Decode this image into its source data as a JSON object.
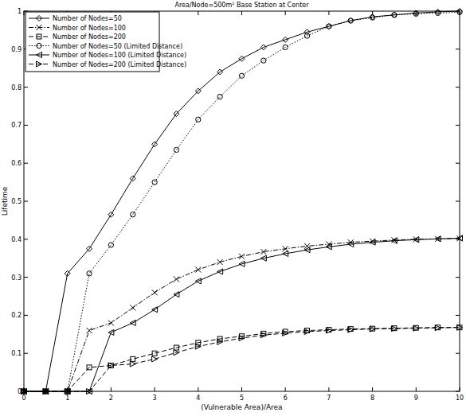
{
  "chart_data": {
    "type": "line",
    "title": "Area/Node=500m² Base Station at Center",
    "x_label": "(Vulnerable Area)/Area",
    "y_label": "Lifetime",
    "x": [
      0,
      0.5,
      1,
      1.5,
      2,
      2.5,
      3,
      3.5,
      4,
      4.5,
      5,
      5.5,
      6,
      6.5,
      7,
      7.5,
      8,
      8.5,
      9,
      9.5,
      10
    ],
    "xlim": [
      0,
      10
    ],
    "xticks": [
      0,
      1,
      2,
      3,
      4,
      5,
      6,
      7,
      8,
      9,
      10
    ],
    "ylim": [
      0,
      1
    ],
    "yticks": [
      0,
      0.1,
      0.2,
      0.3,
      0.4,
      0.5,
      0.6,
      0.7,
      0.8,
      0.9,
      1
    ],
    "grid": false,
    "legend": "top-left",
    "series": [
      {
        "name": "Number of Nodes=50",
        "color": "#000000",
        "marker": "diamond",
        "line_style": "solid",
        "values": [
          0,
          0,
          0.31,
          0.375,
          0.465,
          0.56,
          0.65,
          0.73,
          0.79,
          0.84,
          0.875,
          0.905,
          0.925,
          0.945,
          0.96,
          0.975,
          0.985,
          0.99,
          0.995,
          0.998,
          1.0
        ]
      },
      {
        "name": "Number of Nodes=100",
        "color": "#000000",
        "marker": "x",
        "line_style": "dashdot",
        "values": [
          0,
          0,
          0,
          0.16,
          0.18,
          0.22,
          0.26,
          0.295,
          0.32,
          0.34,
          0.355,
          0.367,
          0.375,
          0.382,
          0.387,
          0.392,
          0.395,
          0.398,
          0.4,
          0.401,
          0.402
        ]
      },
      {
        "name": "Number of Nodes=200",
        "color": "#000000",
        "marker": "square",
        "line_style": "dashed",
        "values": [
          0,
          0,
          0,
          0.063,
          0.068,
          0.085,
          0.1,
          0.115,
          0.128,
          0.138,
          0.145,
          0.152,
          0.157,
          0.16,
          0.162,
          0.164,
          0.165,
          0.166,
          0.167,
          0.168,
          0.168
        ]
      },
      {
        "name": "Number of Nodes=50 (Limited Distance)",
        "color": "#000000",
        "marker": "circle",
        "line_style": "dotted",
        "values": [
          0,
          0,
          0,
          0.31,
          0.385,
          0.465,
          0.55,
          0.635,
          0.715,
          0.775,
          0.83,
          0.87,
          0.905,
          0.935,
          0.96,
          0.975,
          0.983,
          0.99,
          0.993,
          0.995,
          0.997
        ]
      },
      {
        "name": "Number of Nodes=100 (Limited Distance)",
        "color": "#000000",
        "marker": "triangle-left",
        "line_style": "solid",
        "values": [
          0,
          0,
          0,
          0,
          0.155,
          0.18,
          0.215,
          0.255,
          0.29,
          0.315,
          0.335,
          0.35,
          0.362,
          0.372,
          0.38,
          0.387,
          0.392,
          0.396,
          0.399,
          0.401,
          0.403
        ]
      },
      {
        "name": "Number of Nodes=200 (Limited Distance)",
        "color": "#000000",
        "marker": "triangle-right",
        "line_style": "dashed",
        "values": [
          0,
          0,
          0,
          0,
          0.068,
          0.072,
          0.085,
          0.102,
          0.118,
          0.13,
          0.14,
          0.148,
          0.153,
          0.157,
          0.16,
          0.162,
          0.164,
          0.165,
          0.166,
          0.167,
          0.168
        ]
      }
    ]
  }
}
